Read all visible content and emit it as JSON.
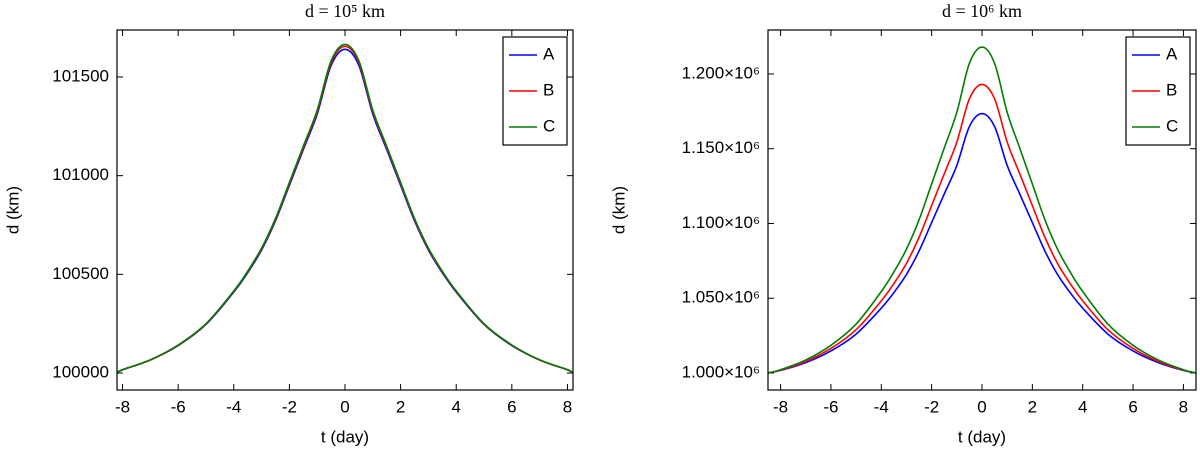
{
  "chart_data": [
    {
      "type": "line",
      "title": "d = 10⁵ km",
      "x_label": "t (day)",
      "y_label": "d (km)",
      "legend": "upper right",
      "x": [
        -8.2,
        -8,
        -7,
        -6,
        -5,
        -4,
        -3.5,
        -3,
        -2.5,
        -2,
        -1.5,
        -1,
        -0.5,
        0,
        0.5,
        1,
        1.5,
        2,
        2.5,
        3,
        3.5,
        4,
        5,
        6,
        7,
        8,
        8.2
      ],
      "xlim": [
        -8.2,
        8.2
      ],
      "xticks": [
        -8,
        -6,
        -4,
        -2,
        0,
        2,
        4,
        6,
        8
      ],
      "ylim": [
        99914,
        101738
      ],
      "yticks": [
        100000,
        100500,
        101000,
        101500
      ],
      "series": [
        {
          "name": "A",
          "color": "#0000ff",
          "values": [
            100000,
            100016,
            100066,
            100139,
            100246,
            100410,
            100508,
            100623,
            100771,
            100951,
            101132,
            101312,
            101558,
            101640,
            101558,
            101312,
            101132,
            100951,
            100771,
            100623,
            100508,
            100410,
            100246,
            100139,
            100066,
            100016,
            100000
          ]
        },
        {
          "name": "B",
          "color": "#ff0000",
          "values": [
            100000,
            100017,
            100066,
            100141,
            100248,
            100414,
            100513,
            100629,
            100778,
            100960,
            101142,
            101324,
            101572,
            101655,
            101572,
            101324,
            101142,
            100960,
            100778,
            100629,
            100513,
            100414,
            100248,
            100141,
            100066,
            100017,
            100000
          ]
        },
        {
          "name": "C",
          "color": "#007f00",
          "values": [
            100000,
            100017,
            100067,
            100142,
            100250,
            100416,
            100516,
            100633,
            100783,
            100966,
            101149,
            101332,
            101582,
            101665,
            101582,
            101332,
            101149,
            100966,
            100783,
            100633,
            100516,
            100416,
            100250,
            100142,
            100067,
            100017,
            100000
          ]
        }
      ]
    },
    {
      "type": "line",
      "title": "d = 10⁶ km",
      "x_label": "t (day)",
      "y_label": "d (km)",
      "legend": "upper right",
      "x": [
        -8.5,
        -8,
        -7,
        -6,
        -5,
        -4,
        -3.5,
        -3,
        -2.5,
        -2,
        -1.5,
        -1,
        -0.5,
        0,
        0.5,
        1,
        1.5,
        2,
        2.5,
        3,
        3.5,
        4,
        5,
        6,
        7,
        8,
        8.5
      ],
      "xlim": [
        -8.5,
        8.5
      ],
      "xticks": [
        -8,
        -6,
        -4,
        -2,
        0,
        2,
        4,
        6,
        8
      ],
      "ylim": [
        988630,
        1229400
      ],
      "yticks": [
        {
          "value": 1000000,
          "label": "1.000×10⁶"
        },
        {
          "value": 1050000,
          "label": "1.050×10⁶"
        },
        {
          "value": 1100000,
          "label": "1.100×10⁶"
        },
        {
          "value": 1150000,
          "label": "1.150×10⁶"
        },
        {
          "value": 1200000,
          "label": "1.200×10⁶"
        }
      ],
      "series": [
        {
          "name": "A",
          "color": "#0000ff",
          "values": [
            1000000,
            1001735,
            1006940,
            1014748,
            1026025,
            1043375,
            1053785,
            1065930,
            1081545,
            1100630,
            1119715,
            1138800,
            1164825,
            1173500,
            1164825,
            1138800,
            1119715,
            1100630,
            1081545,
            1065930,
            1053785,
            1043375,
            1026025,
            1014748,
            1006940,
            1001735,
            1000000
          ]
        },
        {
          "name": "B",
          "color": "#ff0000",
          "values": [
            1000000,
            1001930,
            1007720,
            1016405,
            1028950,
            1048250,
            1059830,
            1073340,
            1090710,
            1111940,
            1133170,
            1154400,
            1183350,
            1193000,
            1183350,
            1154400,
            1133170,
            1111940,
            1090710,
            1073340,
            1059830,
            1048250,
            1028950,
            1016405,
            1007720,
            1001930,
            1000000
          ]
        },
        {
          "name": "C",
          "color": "#007f00",
          "values": [
            1000000,
            1002180,
            1008720,
            1018530,
            1032700,
            1054500,
            1067580,
            1082840,
            1102460,
            1126440,
            1150420,
            1174400,
            1207100,
            1218000,
            1207100,
            1174400,
            1150420,
            1126440,
            1102460,
            1082840,
            1067580,
            1054500,
            1032700,
            1018530,
            1008720,
            1002180,
            1000000
          ]
        }
      ]
    }
  ]
}
